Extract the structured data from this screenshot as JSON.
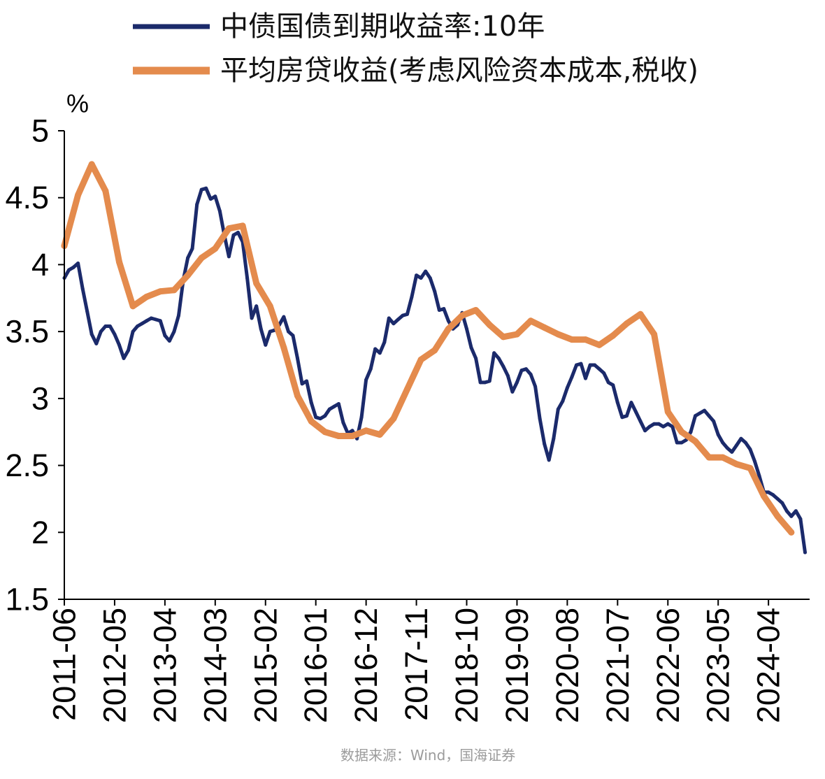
{
  "chart_data": {
    "type": "line",
    "ylabel": "%",
    "ylim": [
      1.5,
      5
    ],
    "yticks": [
      1.5,
      2,
      2.5,
      3,
      3.5,
      4,
      4.5,
      5
    ],
    "xlim": [
      "2011-06",
      "2025-01"
    ],
    "xticks": [
      "2011-06",
      "2012-05",
      "2013-04",
      "2014-03",
      "2015-02",
      "2016-01",
      "2016-12",
      "2017-11",
      "2018-10",
      "2019-09",
      "2020-08",
      "2021-07",
      "2022-06",
      "2023-05",
      "2024-04"
    ],
    "grid": false,
    "legend": "top",
    "series": [
      {
        "name": "中债国债到期收益率:10年",
        "color": "#1b2a6b",
        "x": [
          "2011-06",
          "2011-07",
          "2011-08",
          "2011-09",
          "2011-10",
          "2011-11",
          "2011-12",
          "2012-01",
          "2012-02",
          "2012-03",
          "2012-04",
          "2012-05",
          "2012-06",
          "2012-07",
          "2012-08",
          "2012-09",
          "2012-10",
          "2012-11",
          "2012-12",
          "2013-01",
          "2013-02",
          "2013-03",
          "2013-04",
          "2013-05",
          "2013-06",
          "2013-07",
          "2013-08",
          "2013-09",
          "2013-10",
          "2013-11",
          "2013-12",
          "2014-01",
          "2014-02",
          "2014-03",
          "2014-04",
          "2014-05",
          "2014-06",
          "2014-07",
          "2014-08",
          "2014-09",
          "2014-10",
          "2014-11",
          "2014-12",
          "2015-01",
          "2015-02",
          "2015-03",
          "2015-04",
          "2015-05",
          "2015-06",
          "2015-07",
          "2015-08",
          "2015-09",
          "2015-10",
          "2015-11",
          "2015-12",
          "2016-01",
          "2016-02",
          "2016-03",
          "2016-04",
          "2016-05",
          "2016-06",
          "2016-07",
          "2016-08",
          "2016-09",
          "2016-10",
          "2016-11",
          "2016-12",
          "2017-01",
          "2017-02",
          "2017-03",
          "2017-04",
          "2017-05",
          "2017-06",
          "2017-07",
          "2017-08",
          "2017-09",
          "2017-10",
          "2017-11",
          "2017-12",
          "2018-01",
          "2018-02",
          "2018-03",
          "2018-04",
          "2018-05",
          "2018-06",
          "2018-07",
          "2018-08",
          "2018-09",
          "2018-10",
          "2018-11",
          "2018-12",
          "2019-01",
          "2019-02",
          "2019-03",
          "2019-04",
          "2019-05",
          "2019-06",
          "2019-07",
          "2019-08",
          "2019-09",
          "2019-10",
          "2019-11",
          "2019-12",
          "2020-01",
          "2020-02",
          "2020-03",
          "2020-04",
          "2020-05",
          "2020-06",
          "2020-07",
          "2020-08",
          "2020-09",
          "2020-10",
          "2020-11",
          "2020-12",
          "2021-01",
          "2021-02",
          "2021-03",
          "2021-04",
          "2021-05",
          "2021-06",
          "2021-07",
          "2021-08",
          "2021-09",
          "2021-10",
          "2021-11",
          "2021-12",
          "2022-01",
          "2022-02",
          "2022-03",
          "2022-04",
          "2022-05",
          "2022-06",
          "2022-07",
          "2022-08",
          "2022-09",
          "2022-10",
          "2022-11",
          "2022-12",
          "2023-01",
          "2023-02",
          "2023-03",
          "2023-04",
          "2023-05",
          "2023-06",
          "2023-07",
          "2023-08",
          "2023-09",
          "2023-10",
          "2023-11",
          "2023-12",
          "2024-01",
          "2024-02",
          "2024-03",
          "2024-04",
          "2024-05",
          "2024-06",
          "2024-07",
          "2024-08",
          "2024-09",
          "2024-10",
          "2024-11",
          "2024-12"
        ],
        "y": [
          3.9,
          3.96,
          3.98,
          4.01,
          3.82,
          3.65,
          3.48,
          3.41,
          3.5,
          3.54,
          3.54,
          3.48,
          3.4,
          3.3,
          3.36,
          3.5,
          3.54,
          3.56,
          3.58,
          3.6,
          3.59,
          3.58,
          3.47,
          3.43,
          3.5,
          3.62,
          3.88,
          4.05,
          4.12,
          4.45,
          4.56,
          4.57,
          4.49,
          4.51,
          4.4,
          4.22,
          4.06,
          4.22,
          4.24,
          4.17,
          3.9,
          3.6,
          3.69,
          3.52,
          3.4,
          3.5,
          3.51,
          3.55,
          3.61,
          3.5,
          3.47,
          3.3,
          3.11,
          3.13,
          2.97,
          2.86,
          2.85,
          2.87,
          2.92,
          2.94,
          2.96,
          2.82,
          2.74,
          2.76,
          2.7,
          2.86,
          3.14,
          3.22,
          3.37,
          3.34,
          3.42,
          3.6,
          3.56,
          3.59,
          3.62,
          3.63,
          3.76,
          3.92,
          3.9,
          3.95,
          3.9,
          3.8,
          3.66,
          3.67,
          3.58,
          3.52,
          3.55,
          3.64,
          3.52,
          3.38,
          3.3,
          3.12,
          3.12,
          3.13,
          3.34,
          3.3,
          3.24,
          3.17,
          3.05,
          3.12,
          3.21,
          3.22,
          3.18,
          3.09,
          2.85,
          2.66,
          2.54,
          2.7,
          2.92,
          2.98,
          3.08,
          3.16,
          3.25,
          3.26,
          3.15,
          3.25,
          3.25,
          3.22,
          3.19,
          3.12,
          3.1,
          2.97,
          2.86,
          2.87,
          2.97,
          2.9,
          2.83,
          2.76,
          2.79,
          2.81,
          2.81,
          2.79,
          2.81,
          2.79,
          2.67,
          2.67,
          2.69,
          2.75,
          2.87,
          2.89,
          2.91,
          2.87,
          2.83,
          2.73,
          2.67,
          2.63,
          2.6,
          2.65,
          2.7,
          2.67,
          2.62,
          2.53,
          2.42,
          2.3,
          2.3,
          2.28,
          2.25,
          2.22,
          2.16,
          2.12,
          2.16,
          2.1,
          1.85
        ]
      },
      {
        "name": "平均房贷收益(考虑风险资本成本,税收)",
        "color": "#e48b4d",
        "x": [
          "2011-06",
          "2011-09",
          "2011-12",
          "2012-03",
          "2012-06",
          "2012-09",
          "2012-12",
          "2013-03",
          "2013-06",
          "2013-09",
          "2013-12",
          "2014-03",
          "2014-06",
          "2014-09",
          "2014-12",
          "2015-03",
          "2015-06",
          "2015-09",
          "2015-12",
          "2016-03",
          "2016-06",
          "2016-09",
          "2016-12",
          "2017-03",
          "2017-06",
          "2017-09",
          "2017-12",
          "2018-03",
          "2018-06",
          "2018-09",
          "2018-12",
          "2019-03",
          "2019-06",
          "2019-09",
          "2019-12",
          "2020-03",
          "2020-06",
          "2020-09",
          "2020-12",
          "2021-03",
          "2021-06",
          "2021-09",
          "2021-12",
          "2022-03",
          "2022-06",
          "2022-09",
          "2022-12",
          "2023-03",
          "2023-06",
          "2023-09",
          "2023-12",
          "2024-03",
          "2024-06",
          "2024-09"
        ],
        "y": [
          4.14,
          4.52,
          4.75,
          4.55,
          4.02,
          3.69,
          3.76,
          3.8,
          3.81,
          3.92,
          4.05,
          4.12,
          4.27,
          4.29,
          3.86,
          3.69,
          3.38,
          3.02,
          2.83,
          2.75,
          2.72,
          2.72,
          2.76,
          2.73,
          2.85,
          3.07,
          3.29,
          3.36,
          3.52,
          3.62,
          3.66,
          3.55,
          3.46,
          3.48,
          3.58,
          3.53,
          3.48,
          3.44,
          3.44,
          3.4,
          3.47,
          3.56,
          3.63,
          3.48,
          2.9,
          2.75,
          2.68,
          2.56,
          2.56,
          2.51,
          2.48,
          2.27,
          2.12,
          2.0
        ]
      }
    ]
  },
  "source": "数据来源：Wind，国海证券"
}
